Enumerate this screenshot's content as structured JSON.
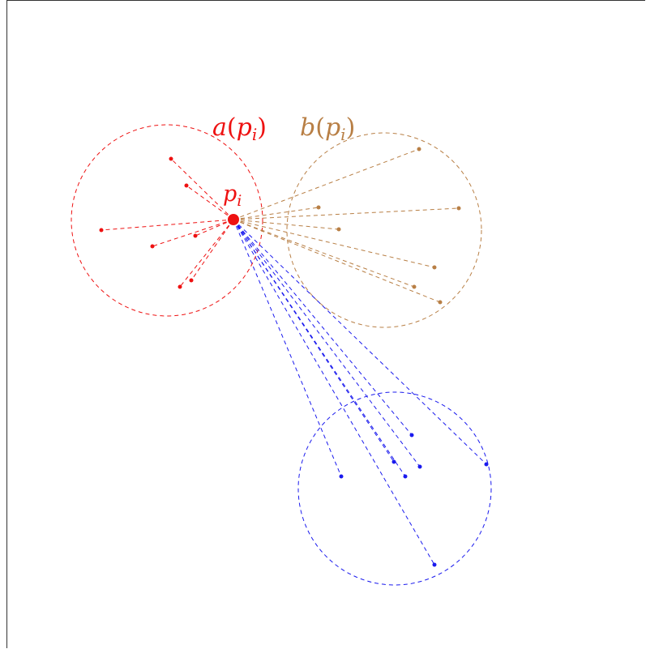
{
  "labels": {
    "point": "p_i",
    "a_label": "a(p_i)",
    "b_label": "b(p_i)"
  },
  "colors": {
    "own_cluster": "#ee1111",
    "neighbor_cluster": "#b87f45",
    "other_cluster": "#1a1aee"
  }
}
